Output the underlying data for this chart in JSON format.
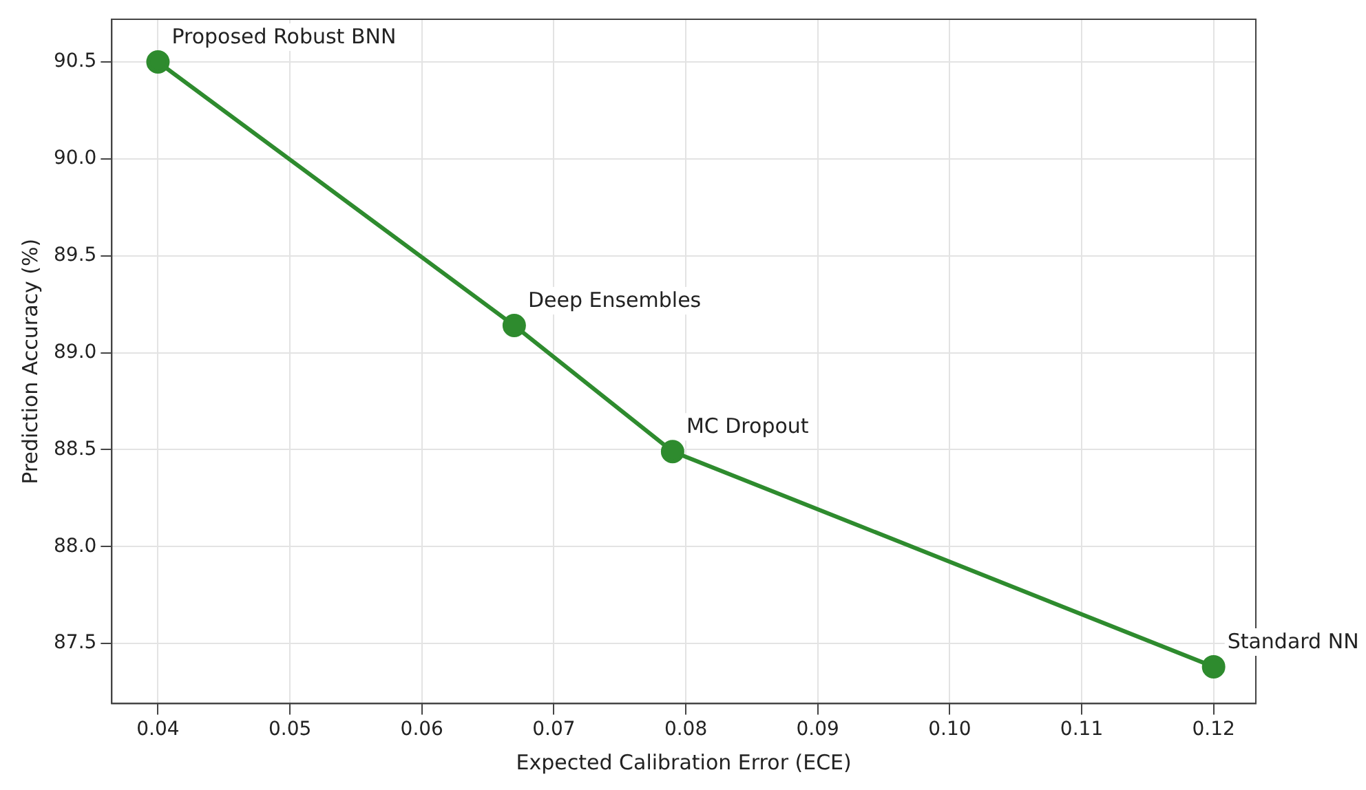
{
  "chart_data": {
    "type": "line",
    "xlabel": "Expected Calibration Error (ECE)",
    "ylabel": "Prediction Accuracy (%)",
    "x": [
      0.04,
      0.067,
      0.079,
      0.12
    ],
    "series": [
      {
        "color": "#2e8b2e",
        "values": [
          90.5,
          89.14,
          88.49,
          87.38
        ]
      }
    ],
    "xlim": [
      0.0365,
      0.1232
    ],
    "xticks": [
      0.04,
      0.05,
      0.06,
      0.07,
      0.08,
      0.09,
      {
        "value": 0.1,
        "label": "0.10"
      },
      0.11,
      0.12
    ],
    "ylim": [
      87.19,
      90.72
    ],
    "yticks": [
      87.5,
      {
        "value": 88,
        "label": "88.0"
      },
      88.5,
      {
        "value": 89,
        "label": "89.0"
      },
      89.5,
      {
        "value": 90,
        "label": "90.0"
      },
      90.5
    ],
    "annotations": [
      {
        "text": "Proposed Robust BNN",
        "x": 0.04,
        "y": 90.5
      },
      {
        "text": "Deep Ensembles",
        "x": 0.067,
        "y": 89.14
      },
      {
        "text": "MC Dropout",
        "x": 0.079,
        "y": 88.49
      },
      {
        "text": "Standard NN",
        "x": 0.12,
        "y": 87.38
      }
    ],
    "grid": true,
    "marker": "circle",
    "line_style": "solid",
    "legend": false
  }
}
